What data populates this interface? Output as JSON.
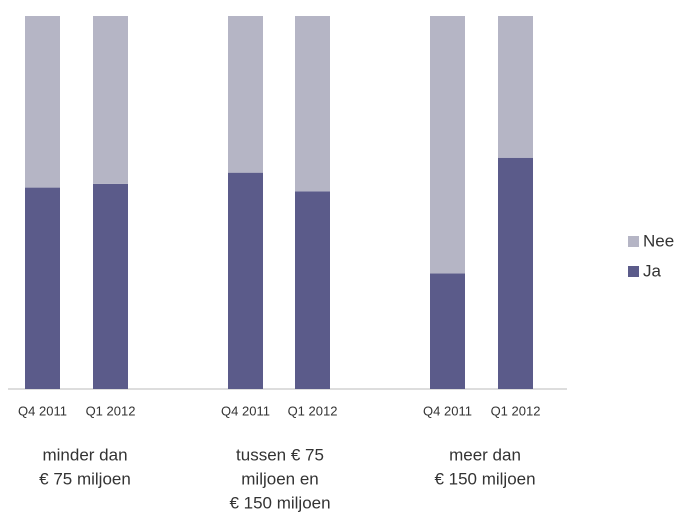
{
  "chart_data": {
    "type": "stacked_bar",
    "categories": [
      "Q4 2011",
      "Q1 2012",
      "Q4 2011",
      "Q1 2012",
      "Q4 2011",
      "Q1 2012"
    ],
    "group_labels": [
      [
        "minder dan",
        "€ 75 miljoen"
      ],
      [
        "tussen € 75",
        "miljoen en",
        "€ 150 miljoen"
      ],
      [
        "meer dan",
        "€ 150 miljoen"
      ]
    ],
    "series": [
      {
        "name": "Ja",
        "color": "#5b5b8a",
        "values": [
          54,
          55,
          58,
          53,
          31,
          62
        ]
      },
      {
        "name": "Nee",
        "color": "#b5b5c5",
        "values": [
          46,
          45,
          42,
          47,
          69,
          38
        ]
      }
    ],
    "ylim": [
      0,
      100
    ]
  }
}
